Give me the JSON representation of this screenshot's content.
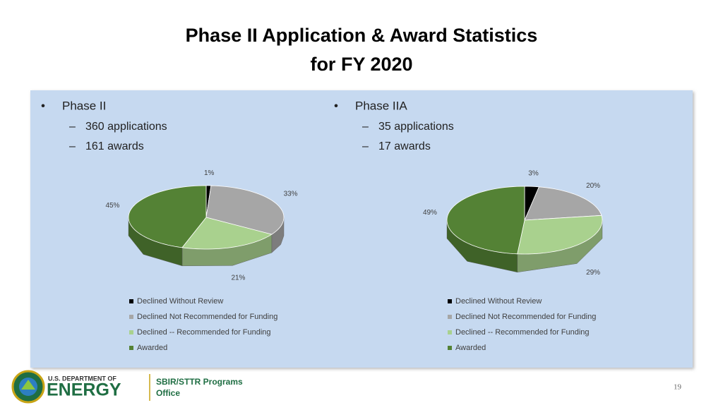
{
  "header": {
    "title": [
      "Phase II Application & Award Statistics",
      "for FY 2020"
    ]
  },
  "panels": [
    {
      "heading": "Phase II",
      "items": [
        "360 applications",
        "161 awards"
      ]
    },
    {
      "heading": "Phase IIA",
      "items": [
        "35 applications",
        "17 awards"
      ]
    }
  ],
  "chart_data": [
    {
      "type": "pie",
      "categories": [
        "Declined Without Review",
        "Declined Not Recommended for Funding",
        "Declined --  Recommended for Funding",
        "Awarded"
      ],
      "values": [
        1,
        33,
        21,
        45
      ],
      "value_labels": [
        "1%",
        "33%",
        "21%",
        "45%"
      ],
      "colors": [
        "#000000",
        "#a6a6a6",
        "#a9d18e",
        "#548235"
      ]
    },
    {
      "type": "pie",
      "categories": [
        "Declined Without Review",
        "Declined Not Recommended for Funding",
        "Declined --  Recommended for Funding",
        "Awarded"
      ],
      "values": [
        3,
        20,
        29,
        49
      ],
      "value_labels": [
        "3%",
        "20%",
        "29%",
        "49%"
      ],
      "colors": [
        "#000000",
        "#a6a6a6",
        "#a9d18e",
        "#548235"
      ]
    }
  ],
  "footer": {
    "agency_top": "U.S. DEPARTMENT OF",
    "agency": "ENERGY",
    "office": [
      "SBIR/STTR Programs",
      "Office"
    ],
    "page": "19"
  }
}
